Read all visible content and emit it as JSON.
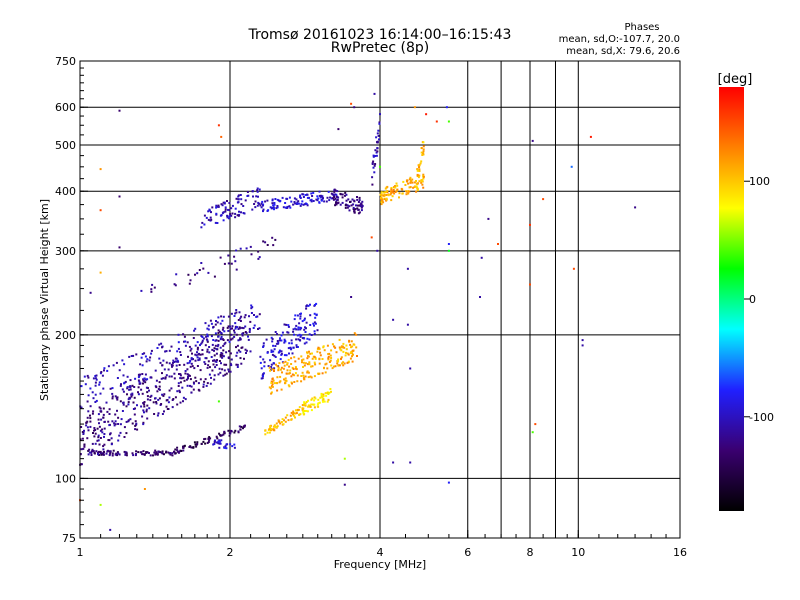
{
  "chart_data": {
    "type": "scatter",
    "title": "Tromsø 20161023 16:14:00–16:15:43",
    "subtitle": "RwPretec (8p)",
    "xlabel": "Frequency [MHz]",
    "ylabel": "Stationary phase Virtual Height [km]",
    "x_scale": "log2",
    "y_scale": "log",
    "xlim": [
      1,
      16
    ],
    "ylim": [
      75,
      750
    ],
    "x_ticks": [
      {
        "value": 1,
        "label": "1"
      },
      {
        "value": 2,
        "label": "2"
      },
      {
        "value": 4,
        "label": "4"
      },
      {
        "value": 6,
        "label": "6"
      },
      {
        "value": 8,
        "label": "8"
      },
      {
        "value": 10,
        "label": "10"
      },
      {
        "value": 16,
        "label": "16"
      }
    ],
    "x_grid": [
      2,
      4,
      6,
      7,
      8,
      9,
      10
    ],
    "y_ticks": [
      {
        "value": 75,
        "label": "75"
      },
      {
        "value": 100,
        "label": "100"
      },
      {
        "value": 200,
        "label": "200"
      },
      {
        "value": 300,
        "label": "300"
      },
      {
        "value": 400,
        "label": "400"
      },
      {
        "value": 500,
        "label": "500"
      },
      {
        "value": 600,
        "label": "600"
      },
      {
        "value": 750,
        "label": "750"
      }
    ],
    "grid": true,
    "phase_box": {
      "title": "Phases",
      "line1": "mean, sd,O:-107.7, 20.0",
      "line2": "mean, sd,X:  79.6, 20.6"
    },
    "colorbar": {
      "label": "[deg]",
      "range": [
        -180,
        180
      ],
      "ticks": [
        {
          "value": 100,
          "label": "100"
        },
        {
          "value": 0,
          "label": "0"
        },
        {
          "value": -100,
          "label": "-100"
        }
      ],
      "colors": [
        "#000000",
        "#3a0070",
        "#2020ff",
        "#00ffff",
        "#00ff00",
        "#ffff00",
        "#ff8000",
        "#ff0000"
      ]
    },
    "traces": [
      {
        "x0": 1.0,
        "x1": 1.55,
        "h0": 113,
        "h1": 113,
        "phase": -130,
        "spread": 0.012,
        "n": 90
      },
      {
        "x0": 1.55,
        "x1": 2.15,
        "h0": 114,
        "h1": 128,
        "phase": -140,
        "spread": 0.015,
        "n": 70
      },
      {
        "x0": 1.0,
        "x1": 2.2,
        "h0": 120,
        "h1": 200,
        "phase": -120,
        "spread": 0.12,
        "n": 480
      },
      {
        "x0": 1.0,
        "x1": 2.3,
        "h0": 150,
        "h1": 220,
        "phase": -105,
        "spread": 0.08,
        "n": 200
      },
      {
        "x0": 1.3,
        "x1": 2.5,
        "h0": 240,
        "h1": 310,
        "phase": -120,
        "spread": 0.05,
        "n": 40
      },
      {
        "x0": 1.75,
        "x1": 2.3,
        "h0": 345,
        "h1": 390,
        "phase": -105,
        "spread": 0.05,
        "n": 90
      },
      {
        "x0": 2.3,
        "x1": 3.3,
        "h0": 370,
        "h1": 395,
        "phase": -95,
        "spread": 0.03,
        "n": 110
      },
      {
        "x0": 3.2,
        "x1": 3.7,
        "h0": 390,
        "h1": 370,
        "phase": -125,
        "spread": 0.04,
        "n": 80
      },
      {
        "x0": 3.85,
        "x1": 4.0,
        "h0": 420,
        "h1": 560,
        "phase": -110,
        "spread": 0.06,
        "n": 30
      },
      {
        "x0": 2.3,
        "x1": 3.0,
        "h0": 175,
        "h1": 220,
        "phase": -95,
        "spread": 0.09,
        "n": 150
      },
      {
        "x0": 2.35,
        "x1": 2.8,
        "h0": 125,
        "h1": 140,
        "phase": 105,
        "spread": 0.02,
        "n": 60
      },
      {
        "x0": 2.8,
        "x1": 3.2,
        "h0": 140,
        "h1": 150,
        "phase": 90,
        "spread": 0.03,
        "n": 60
      },
      {
        "x0": 2.4,
        "x1": 3.6,
        "h0": 160,
        "h1": 190,
        "phase": 110,
        "spread": 0.07,
        "n": 220
      },
      {
        "x0": 4.0,
        "x1": 4.9,
        "h0": 390,
        "h1": 420,
        "phase": 110,
        "spread": 0.04,
        "n": 110
      },
      {
        "x0": 4.75,
        "x1": 4.9,
        "h0": 430,
        "h1": 500,
        "phase": 105,
        "spread": 0.04,
        "n": 25
      },
      {
        "x0": 1.85,
        "x1": 2.05,
        "h0": 118,
        "h1": 118,
        "phase": -95,
        "spread": 0.02,
        "n": 25
      }
    ],
    "sporadic": [
      {
        "x": 1.2,
        "y": 590,
        "phase": -130
      },
      {
        "x": 1.9,
        "y": 550,
        "phase": 160
      },
      {
        "x": 1.92,
        "y": 520,
        "phase": 140
      },
      {
        "x": 3.5,
        "y": 610,
        "phase": 150
      },
      {
        "x": 3.55,
        "y": 600,
        "phase": -120
      },
      {
        "x": 4.95,
        "y": 580,
        "phase": 170
      },
      {
        "x": 5.45,
        "y": 600,
        "phase": -80
      },
      {
        "x": 5.2,
        "y": 560,
        "phase": 160
      },
      {
        "x": 5.5,
        "y": 560,
        "phase": 40
      },
      {
        "x": 8.1,
        "y": 510,
        "phase": -120
      },
      {
        "x": 10.6,
        "y": 520,
        "phase": 170
      },
      {
        "x": 9.7,
        "y": 450,
        "phase": -60
      },
      {
        "x": 13.0,
        "y": 370,
        "phase": -120
      },
      {
        "x": 8.5,
        "y": 385,
        "phase": 150
      },
      {
        "x": 8.0,
        "y": 340,
        "phase": 160
      },
      {
        "x": 6.6,
        "y": 350,
        "phase": -120
      },
      {
        "x": 6.9,
        "y": 310,
        "phase": 150
      },
      {
        "x": 6.4,
        "y": 290,
        "phase": -110
      },
      {
        "x": 5.5,
        "y": 300,
        "phase": 20
      },
      {
        "x": 5.5,
        "y": 310,
        "phase": -80
      },
      {
        "x": 9.8,
        "y": 275,
        "phase": 150
      },
      {
        "x": 8.0,
        "y": 255,
        "phase": 150
      },
      {
        "x": 6.35,
        "y": 240,
        "phase": -110
      },
      {
        "x": 4.25,
        "y": 215,
        "phase": -110
      },
      {
        "x": 4.55,
        "y": 210,
        "phase": -110
      },
      {
        "x": 4.55,
        "y": 275,
        "phase": -110
      },
      {
        "x": 10.2,
        "y": 195,
        "phase": -110
      },
      {
        "x": 10.2,
        "y": 190,
        "phase": -110
      },
      {
        "x": 4.6,
        "y": 170,
        "phase": -110
      },
      {
        "x": 8.2,
        "y": 130,
        "phase": 150
      },
      {
        "x": 8.1,
        "y": 125,
        "phase": 40
      },
      {
        "x": 4.6,
        "y": 108,
        "phase": -110
      },
      {
        "x": 4.25,
        "y": 108,
        "phase": -110
      },
      {
        "x": 5.5,
        "y": 98,
        "phase": -80
      },
      {
        "x": 3.4,
        "y": 97,
        "phase": -120
      },
      {
        "x": 1.1,
        "y": 88,
        "phase": 60
      },
      {
        "x": 1.0,
        "y": 90,
        "phase": 150
      },
      {
        "x": 1.35,
        "y": 95,
        "phase": 120
      },
      {
        "x": 1.15,
        "y": 78,
        "phase": -110
      },
      {
        "x": 1.1,
        "y": 365,
        "phase": 150
      },
      {
        "x": 1.1,
        "y": 445,
        "phase": 120
      },
      {
        "x": 1.2,
        "y": 390,
        "phase": -130
      },
      {
        "x": 1.05,
        "y": 245,
        "phase": -120
      },
      {
        "x": 1.1,
        "y": 270,
        "phase": 110
      },
      {
        "x": 1.2,
        "y": 305,
        "phase": -130
      },
      {
        "x": 3.5,
        "y": 240,
        "phase": -120
      },
      {
        "x": 3.4,
        "y": 110,
        "phase": 60
      },
      {
        "x": 4.0,
        "y": 450,
        "phase": 40
      },
      {
        "x": 3.85,
        "y": 320,
        "phase": 150
      },
      {
        "x": 1.9,
        "y": 145,
        "phase": 40
      },
      {
        "x": 3.95,
        "y": 300,
        "phase": -110
      },
      {
        "x": 3.3,
        "y": 540,
        "phase": -130
      },
      {
        "x": 4.7,
        "y": 600,
        "phase": 120
      },
      {
        "x": 3.9,
        "y": 640,
        "phase": -110
      }
    ]
  }
}
